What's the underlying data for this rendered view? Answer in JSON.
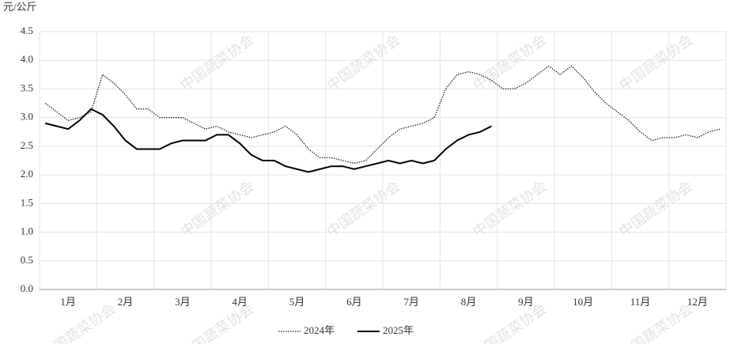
{
  "chart_data": {
    "type": "line",
    "y_label": "元/公斤",
    "watermark": "中国蔬菜协会",
    "categories": [
      null,
      null,
      "1月",
      null,
      null,
      null,
      null,
      "2月",
      null,
      null,
      null,
      null,
      "3月",
      null,
      null,
      null,
      null,
      "4月",
      null,
      null,
      null,
      null,
      "5月",
      null,
      null,
      null,
      null,
      "6月",
      null,
      null,
      null,
      null,
      "7月",
      null,
      null,
      null,
      null,
      "8月",
      null,
      null,
      null,
      null,
      "9月",
      null,
      null,
      null,
      null,
      "10月",
      null,
      null,
      null,
      null,
      "11月",
      null,
      null,
      null,
      null,
      "12月",
      null,
      null
    ],
    "series": [
      {
        "name": "2024年",
        "color": "#222222",
        "style": "dotted",
        "values": [
          3.25,
          3.1,
          2.95,
          3.0,
          3.1,
          3.75,
          3.6,
          3.4,
          3.15,
          3.15,
          3.0,
          3.0,
          3.0,
          2.9,
          2.8,
          2.85,
          2.75,
          2.7,
          2.65,
          2.7,
          2.75,
          2.85,
          2.7,
          2.45,
          2.3,
          2.3,
          2.25,
          2.2,
          2.25,
          2.45,
          2.65,
          2.8,
          2.85,
          2.9,
          3.0,
          3.5,
          3.75,
          3.8,
          3.75,
          3.65,
          3.5,
          3.5,
          3.6,
          3.75,
          3.9,
          3.75,
          3.9,
          3.7,
          3.45,
          3.25,
          3.1,
          2.95,
          2.75,
          2.6,
          2.65,
          2.65,
          2.7,
          2.65,
          2.75,
          2.8
        ]
      },
      {
        "name": "2025年",
        "color": "#000000",
        "style": "solid",
        "values": [
          2.9,
          2.85,
          2.8,
          2.95,
          3.15,
          3.05,
          2.85,
          2.6,
          2.45,
          2.45,
          2.45,
          2.55,
          2.6,
          2.6,
          2.6,
          2.7,
          2.7,
          2.55,
          2.35,
          2.25,
          2.25,
          2.15,
          2.1,
          2.05,
          2.1,
          2.15,
          2.15,
          2.1,
          2.15,
          2.2,
          2.25,
          2.2,
          2.25,
          2.2,
          2.25,
          2.45,
          2.6,
          2.7,
          2.75,
          2.85,
          null,
          null,
          null,
          null,
          null,
          null,
          null,
          null,
          null,
          null,
          null,
          null,
          null,
          null,
          null,
          null,
          null,
          null,
          null,
          null
        ]
      }
    ],
    "ylim": [
      0,
      4.5
    ],
    "yticks": [
      {
        "value": 0,
        "label": "0.0"
      },
      {
        "value": 0.5,
        "label": "0.5"
      },
      {
        "value": 1,
        "label": "1.0"
      },
      {
        "value": 1.5,
        "label": "1.5"
      },
      {
        "value": 2,
        "label": "2.0"
      },
      {
        "value": 2.5,
        "label": "2.5"
      },
      {
        "value": 3,
        "label": "3.0"
      },
      {
        "value": 3.5,
        "label": "3.5"
      },
      {
        "value": 4,
        "label": "4.0"
      },
      {
        "value": 4.5,
        "label": "4.5"
      }
    ],
    "grid": true,
    "legend": "bottom"
  }
}
